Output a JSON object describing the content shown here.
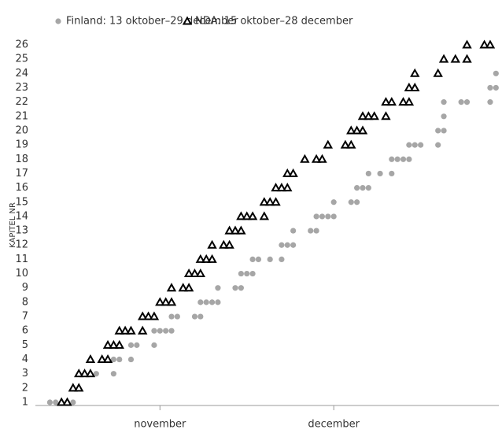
{
  "chart_data": {
    "type": "scatter",
    "y_label": "KAPITEL NR",
    "series": [
      {
        "name": "Finland: 13 oktober–29 december",
        "color": "#a6a6a6",
        "marker": "circle",
        "x": [
          13,
          14,
          16,
          17,
          21,
          24,
          24,
          25,
          27,
          27,
          28,
          31,
          31,
          32,
          33,
          34,
          34,
          35,
          38,
          39,
          39,
          40,
          41,
          42,
          42,
          45,
          46,
          46,
          47,
          48,
          48,
          49,
          51,
          53,
          53,
          54,
          55,
          55,
          58,
          59,
          59,
          60,
          61,
          62,
          62,
          65,
          66,
          66,
          67,
          68,
          68,
          70,
          72,
          72,
          73,
          74,
          75,
          75,
          76,
          77,
          80,
          80,
          81,
          81,
          81,
          84,
          85,
          89,
          89,
          90,
          90
        ],
        "y": [
          1,
          1,
          1,
          1,
          3,
          3,
          4,
          4,
          4,
          5,
          5,
          5,
          6,
          6,
          6,
          6,
          7,
          7,
          7,
          7,
          8,
          8,
          8,
          8,
          9,
          9,
          9,
          10,
          10,
          10,
          11,
          11,
          11,
          11,
          12,
          12,
          12,
          13,
          13,
          13,
          14,
          14,
          14,
          14,
          15,
          15,
          15,
          16,
          16,
          16,
          17,
          17,
          17,
          18,
          18,
          18,
          18,
          19,
          19,
          19,
          19,
          20,
          20,
          21,
          22,
          22,
          22,
          22,
          23,
          23,
          24
        ]
      },
      {
        "name": "NDA: 15 oktober–28 december",
        "color": "#000000",
        "marker": "triangle",
        "x": [
          15,
          16,
          17,
          18,
          18,
          19,
          20,
          20,
          22,
          23,
          23,
          24,
          25,
          25,
          26,
          27,
          29,
          29,
          30,
          31,
          32,
          33,
          34,
          34,
          36,
          37,
          37,
          38,
          39,
          39,
          40,
          41,
          41,
          43,
          44,
          44,
          45,
          46,
          46,
          47,
          48,
          50,
          50,
          51,
          52,
          52,
          53,
          54,
          54,
          55,
          57,
          59,
          60,
          61,
          64,
          65,
          65,
          66,
          67,
          67,
          68,
          69,
          71,
          71,
          72,
          74,
          75,
          75,
          76,
          76,
          80,
          81,
          83,
          85,
          85,
          88,
          89
        ],
        "y": [
          1,
          1,
          2,
          2,
          3,
          3,
          3,
          4,
          4,
          4,
          5,
          5,
          5,
          6,
          6,
          6,
          6,
          7,
          7,
          7,
          8,
          8,
          8,
          9,
          9,
          9,
          10,
          10,
          10,
          11,
          11,
          11,
          12,
          12,
          12,
          13,
          13,
          13,
          14,
          14,
          14,
          14,
          15,
          15,
          15,
          16,
          16,
          16,
          17,
          17,
          18,
          18,
          18,
          19,
          19,
          19,
          20,
          20,
          20,
          21,
          21,
          21,
          21,
          22,
          22,
          22,
          22,
          23,
          23,
          24,
          24,
          25,
          25,
          25,
          26,
          26,
          26
        ]
      }
    ],
    "xlim": [
      10.5,
      90.5
    ],
    "xticks": [
      {
        "value": 32,
        "label": "november"
      },
      {
        "value": 62,
        "label": "december"
      }
    ],
    "ylim": [
      0.78,
      26.66
    ],
    "yticks": [
      1,
      2,
      3,
      4,
      5,
      6,
      7,
      8,
      9,
      10,
      11,
      12,
      13,
      14,
      15,
      16,
      17,
      18,
      19,
      20,
      21,
      22,
      23,
      24,
      25,
      26
    ],
    "grid": false,
    "legend": "top"
  }
}
